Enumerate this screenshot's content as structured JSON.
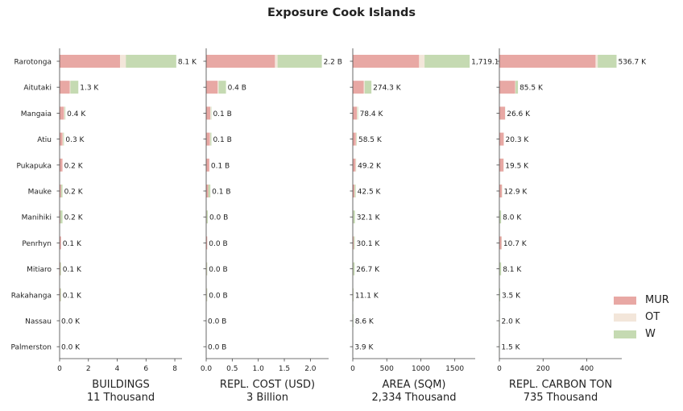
{
  "chart_data": {
    "type": "bar",
    "title": "Exposure Cook Islands",
    "categories": [
      "Rarotonga",
      "Aitutaki",
      "Mangaia",
      "Atiu",
      "Pukapuka",
      "Mauke",
      "Manihiki",
      "Penrhyn",
      "Mitiaro",
      "Rakahanga",
      "Nassau",
      "Palmerston"
    ],
    "series_names": [
      "MUR",
      "OT",
      "W"
    ],
    "colors": {
      "MUR": "#e8a8a4",
      "OT": "#f3e6da",
      "W": "#c5dab2"
    },
    "legend_placement": "lower-right",
    "grid": false,
    "panels": [
      {
        "xlabel": "BUILDINGS",
        "total_label": "11 Thousand",
        "xlim": [
          0,
          8.5
        ],
        "xticks": [
          0,
          2,
          4,
          6,
          8
        ],
        "xtick_labels": [
          "0",
          "2",
          "4",
          "6",
          "8"
        ],
        "series": [
          {
            "name": "MUR",
            "values": [
              4.2,
              0.7,
              0.3,
              0.2,
              0.2,
              0.1,
              0.05,
              0.1,
              0.05,
              0.05,
              0.0,
              0.0
            ]
          },
          {
            "name": "OT",
            "values": [
              0.4,
              0.05,
              0.05,
              0.05,
              0.0,
              0.0,
              0.0,
              0.0,
              0.0,
              0.0,
              0.0,
              0.0
            ]
          },
          {
            "name": "W",
            "values": [
              3.5,
              0.55,
              0.05,
              0.05,
              0.0,
              0.1,
              0.15,
              0.0,
              0.05,
              0.05,
              0.0,
              0.0
            ]
          }
        ],
        "totals": [
          "8.1 K",
          "1.3 K",
          "0.4 K",
          "0.3 K",
          "0.2 K",
          "0.2 K",
          "0.2 K",
          "0.1 K",
          "0.1 K",
          "0.1 K",
          "0.0 K",
          "0.0 K"
        ]
      },
      {
        "xlabel": "REPL. COST (USD)",
        "total_label": "3 Billion",
        "xlim": [
          0,
          2.35
        ],
        "xticks": [
          0,
          0.5,
          1.0,
          1.5,
          2.0
        ],
        "xtick_labels": [
          "0.0",
          "0.5",
          "1.0",
          "1.5",
          "2.0"
        ],
        "series": [
          {
            "name": "MUR",
            "values": [
              1.32,
              0.22,
              0.08,
              0.07,
              0.06,
              0.04,
              0.01,
              0.02,
              0.01,
              0.01,
              0.0,
              0.0
            ]
          },
          {
            "name": "OT",
            "values": [
              0.05,
              0.02,
              0.01,
              0.01,
              0.0,
              0.0,
              0.0,
              0.0,
              0.0,
              0.0,
              0.0,
              0.0
            ]
          },
          {
            "name": "W",
            "values": [
              0.85,
              0.14,
              0.01,
              0.02,
              0.0,
              0.04,
              0.02,
              0.0,
              0.01,
              0.01,
              0.0,
              0.0
            ]
          }
        ],
        "totals": [
          "2.2 B",
          "0.4 B",
          "0.1 B",
          "0.1 B",
          "0.1 B",
          "0.1 B",
          "0.0 B",
          "0.0 B",
          "0.0 B",
          "0.0 B",
          "0.0 B",
          "0.0 B"
        ]
      },
      {
        "xlabel": "AREA (SQM)",
        "total_label": "2,334 Thousand",
        "xlim": [
          0,
          1800
        ],
        "xticks": [
          0,
          500,
          1000,
          1500
        ],
        "xtick_labels": [
          "0",
          "500",
          "1000",
          "1500"
        ],
        "series": [
          {
            "name": "MUR",
            "values": [
              975,
              160,
              60,
              45,
              40,
              25,
              5,
              15,
              5,
              5,
              0,
              0
            ]
          },
          {
            "name": "OT",
            "values": [
              80,
              15,
              10,
              7,
              5,
              3,
              2,
              3,
              2,
              1,
              1,
              1
            ]
          },
          {
            "name": "W",
            "values": [
              664,
              99,
              8,
              7,
              4,
              15,
              25,
              12,
              20,
              5,
              8,
              3
            ]
          }
        ],
        "totals": [
          "1,719.1",
          "274.3 K",
          "78.4 K",
          "58.5 K",
          "49.2 K",
          "42.5 K",
          "32.1 K",
          "30.1 K",
          "26.7 K",
          "11.1 K",
          "8.6 K",
          "3.9 K"
        ]
      },
      {
        "xlabel": "REPL. CARBON TON",
        "total_label": "735 Thousand",
        "xlim": [
          0,
          560
        ],
        "xticks": [
          0,
          200,
          400
        ],
        "xtick_labels": [
          "0",
          "200",
          "400"
        ],
        "series": [
          {
            "name": "MUR",
            "values": [
              440,
              72,
              26,
              20,
              19,
              12,
              0,
              10,
              0,
              0,
              0,
              0
            ]
          },
          {
            "name": "OT",
            "values": [
              10,
              2,
              0,
              0,
              0,
              0,
              0,
              0,
              0,
              0,
              0,
              0
            ]
          },
          {
            "name": "W",
            "values": [
              86,
              11,
              0.6,
              0.3,
              0.5,
              0.9,
              8,
              0.7,
              8.1,
              3.5,
              2,
              1.5
            ]
          }
        ],
        "totals": [
          "536.7 K",
          "85.5 K",
          "26.6 K",
          "20.3 K",
          "19.5 K",
          "12.9 K",
          "8.0 K",
          "10.7 K",
          "8.1 K",
          "3.5 K",
          "2.0 K",
          "1.5 K"
        ]
      }
    ]
  }
}
